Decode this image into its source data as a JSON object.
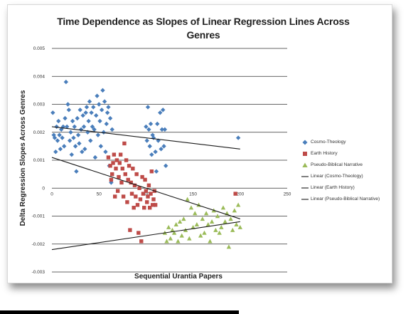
{
  "chart_data": {
    "type": "scatter",
    "title": "Time Dependence as Slopes of Linear Regression Lines Across Genres",
    "xlabel": "Sequential Urantia Papers",
    "ylabel": "Delta Regression Slopes Across Genres",
    "xlim": [
      0,
      250
    ],
    "ylim": [
      -0.003,
      0.005
    ],
    "x_ticks": [
      "0",
      "50",
      "100",
      "150",
      "200",
      "250"
    ],
    "y_ticks": [
      "0.005",
      "0.004",
      "0.003",
      "0.002",
      "0.001",
      "0",
      "-0.001",
      "-0.002",
      "-0.003"
    ],
    "grid": "horizontal",
    "legend_position": "right",
    "series": [
      {
        "name": "Cosmo-Theology",
        "marker": "diamond",
        "color": "#4a7ebb",
        "points": [
          [
            1,
            0.0027
          ],
          [
            2,
            0.0019
          ],
          [
            3,
            0.0018
          ],
          [
            4,
            0.0013
          ],
          [
            5,
            0.0022
          ],
          [
            6,
            0.0017
          ],
          [
            7,
            0.0024
          ],
          [
            8,
            0.0019
          ],
          [
            9,
            0.0014
          ],
          [
            10,
            0.0021
          ],
          [
            11,
            0.0018
          ],
          [
            12,
            0.0022
          ],
          [
            13,
            0.0015
          ],
          [
            14,
            0.0025
          ],
          [
            15,
            0.0038
          ],
          [
            16,
            0.0022
          ],
          [
            17,
            0.003
          ],
          [
            18,
            0.0028
          ],
          [
            19,
            0.0017
          ],
          [
            20,
            0.002
          ],
          [
            21,
            0.0012
          ],
          [
            22,
            0.0024
          ],
          [
            23,
            0.0018
          ],
          [
            24,
            0.0022
          ],
          [
            25,
            0.0015
          ],
          [
            26,
            0.0006
          ],
          [
            27,
            0.0025
          ],
          [
            28,
            0.0019
          ],
          [
            29,
            0.0016
          ],
          [
            30,
            0.0028
          ],
          [
            31,
            0.0021
          ],
          [
            32,
            0.0013
          ],
          [
            33,
            0.0026
          ],
          [
            34,
            0.0022
          ],
          [
            35,
            0.0014
          ],
          [
            36,
            0.0027
          ],
          [
            37,
            0.0029
          ],
          [
            38,
            0.002
          ],
          [
            39,
            0.0024
          ],
          [
            40,
            0.0031
          ],
          [
            41,
            0.0017
          ],
          [
            42,
            0.0027
          ],
          [
            43,
            0.0022
          ],
          [
            44,
            0.0029
          ],
          [
            45,
            0.0021
          ],
          [
            46,
            0.0011
          ],
          [
            47,
            0.0026
          ],
          [
            48,
            0.0033
          ],
          [
            49,
            0.0019
          ],
          [
            50,
            0.003
          ],
          [
            51,
            0.0024
          ],
          [
            52,
            0.0015
          ],
          [
            53,
            0.0028
          ],
          [
            54,
            0.0035
          ],
          [
            55,
            0.002
          ],
          [
            56,
            0.0031
          ],
          [
            57,
            0.0013
          ],
          [
            58,
            0.0023
          ],
          [
            59,
            0.0027
          ],
          [
            60,
            0.0029
          ],
          [
            61,
            0.0008
          ],
          [
            62,
            0.0025
          ],
          [
            63,
            0.0002
          ],
          [
            64,
            0.0021
          ],
          [
            100,
            0.0022
          ],
          [
            101,
            0.0017
          ],
          [
            102,
            0.0029
          ],
          [
            103,
            0.0021
          ],
          [
            104,
            0.0015
          ],
          [
            105,
            0.0023
          ],
          [
            106,
            0.0012
          ],
          [
            107,
            0.0019
          ],
          [
            108,
            0.0018
          ],
          [
            109,
            -0.0006
          ],
          [
            110,
            0.0013
          ],
          [
            111,
            0.0006
          ],
          [
            112,
            0.0023
          ],
          [
            113,
            0.0017
          ],
          [
            115,
            0.0027
          ],
          [
            116,
            0.0014
          ],
          [
            117,
            0.0021
          ],
          [
            118,
            0.0028
          ],
          [
            119,
            0.0015
          ],
          [
            120,
            0.0021
          ],
          [
            121,
            0.0008
          ],
          [
            198,
            0.0018
          ]
        ]
      },
      {
        "name": "Earth History",
        "marker": "square",
        "color": "#be4b48",
        "points": [
          [
            60,
            0.0011
          ],
          [
            62,
            0.0008
          ],
          [
            63,
            0.0003
          ],
          [
            64,
            0.0005
          ],
          [
            65,
            0.0009
          ],
          [
            66,
            0.0012
          ],
          [
            67,
            -0.0003
          ],
          [
            68,
            0.0007
          ],
          [
            69,
            0.001
          ],
          [
            70,
            -0.0001
          ],
          [
            71,
            0.0004
          ],
          [
            72,
            0.0009
          ],
          [
            73,
            0.0012
          ],
          [
            74,
            0.0002
          ],
          [
            75,
            0.0007
          ],
          [
            76,
            -0.0003
          ],
          [
            77,
            0.0016
          ],
          [
            78,
            0.0005
          ],
          [
            79,
            0.001
          ],
          [
            80,
            -0.0005
          ],
          [
            81,
            0.0003
          ],
          [
            82,
            0.0008
          ],
          [
            83,
            -0.0015
          ],
          [
            84,
            0.0002
          ],
          [
            85,
            -0.0002
          ],
          [
            86,
            0.0007
          ],
          [
            87,
            -0.0007
          ],
          [
            88,
            0.0001
          ],
          [
            89,
            -0.0003
          ],
          [
            90,
            0.0005
          ],
          [
            91,
            -0.0006
          ],
          [
            92,
            -0.0016
          ],
          [
            93,
            0.0
          ],
          [
            94,
            -0.0004
          ],
          [
            95,
            -0.0019
          ],
          [
            96,
            0.0004
          ],
          [
            97,
            -0.0002
          ],
          [
            98,
            -0.0007
          ],
          [
            99,
            0.0003
          ],
          [
            100,
            -0.0001
          ],
          [
            101,
            -0.0005
          ],
          [
            102,
            -0.0003
          ],
          [
            103,
            0.0001
          ],
          [
            104,
            -0.0007
          ],
          [
            105,
            -0.0002
          ],
          [
            106,
            0.0006
          ],
          [
            107,
            -0.0006
          ],
          [
            108,
            -0.0004
          ],
          [
            109,
            -0.0001
          ],
          [
            110,
            -0.0006
          ],
          [
            195,
            -0.0002
          ]
        ]
      },
      {
        "name": "Pseudo-Biblical Narrative",
        "marker": "triangle",
        "color": "#9bbb59",
        "points": [
          [
            120,
            -0.0016
          ],
          [
            122,
            -0.0019
          ],
          [
            124,
            -0.0014
          ],
          [
            126,
            -0.0018
          ],
          [
            128,
            -0.0015
          ],
          [
            130,
            -0.0016
          ],
          [
            132,
            -0.0013
          ],
          [
            134,
            -0.0019
          ],
          [
            136,
            -0.0012
          ],
          [
            138,
            -0.0017
          ],
          [
            140,
            -0.0011
          ],
          [
            142,
            -0.0015
          ],
          [
            144,
            -0.0004
          ],
          [
            146,
            -0.0018
          ],
          [
            148,
            -0.0007
          ],
          [
            150,
            -0.0014
          ],
          [
            152,
            -0.0009
          ],
          [
            154,
            -0.0013
          ],
          [
            156,
            -0.0006
          ],
          [
            158,
            -0.0017
          ],
          [
            160,
            -0.0011
          ],
          [
            162,
            -0.0016
          ],
          [
            164,
            -0.0009
          ],
          [
            166,
            -0.0013
          ],
          [
            168,
            -0.0019
          ],
          [
            170,
            -0.0012
          ],
          [
            172,
            -0.0008
          ],
          [
            174,
            -0.0015
          ],
          [
            176,
            -0.001
          ],
          [
            178,
            -0.0016
          ],
          [
            180,
            -0.0014
          ],
          [
            182,
            -0.0007
          ],
          [
            184,
            -0.0012
          ],
          [
            186,
            -0.0009
          ],
          [
            188,
            -0.0021
          ],
          [
            190,
            -0.0011
          ],
          [
            192,
            -0.0015
          ],
          [
            194,
            -0.0008
          ],
          [
            196,
            -0.0013
          ],
          [
            198,
            -0.0006
          ],
          [
            200,
            -0.0014
          ]
        ]
      }
    ],
    "trendlines": [
      {
        "name": "Linear (Cosmo-Theology)",
        "from": [
          0,
          0.0022
        ],
        "to": [
          200,
          0.0014
        ],
        "color": "#1a1a1a"
      },
      {
        "name": "Linear (Earth History)",
        "from": [
          0,
          0.0011
        ],
        "to": [
          200,
          -0.0011
        ],
        "color": "#1a1a1a"
      },
      {
        "name": "Linear (Pseudo-Biblical  Narrative)",
        "from": [
          0,
          -0.0022
        ],
        "to": [
          200,
          -0.0012
        ],
        "color": "#1a1a1a"
      }
    ]
  }
}
